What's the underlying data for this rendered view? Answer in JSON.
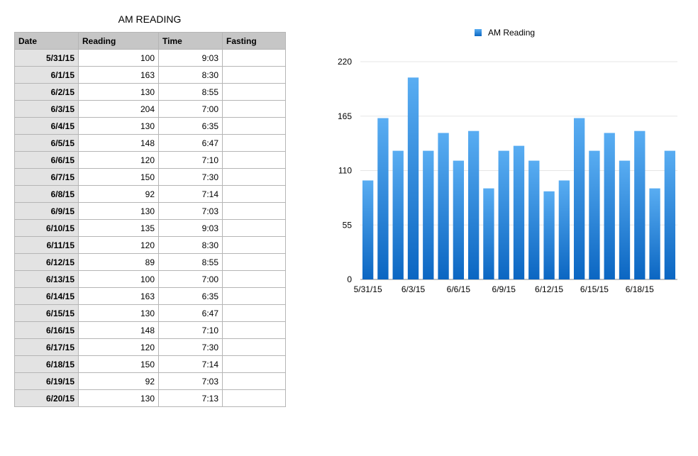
{
  "table": {
    "title": "AM READING",
    "headers": [
      "Date",
      "Reading",
      "Time",
      "Fasting"
    ],
    "rows": [
      {
        "date": "5/31/15",
        "reading": "100",
        "time": "9:03",
        "fasting": ""
      },
      {
        "date": "6/1/15",
        "reading": "163",
        "time": "8:30",
        "fasting": ""
      },
      {
        "date": "6/2/15",
        "reading": "130",
        "time": "8:55",
        "fasting": ""
      },
      {
        "date": "6/3/15",
        "reading": "204",
        "time": "7:00",
        "fasting": ""
      },
      {
        "date": "6/4/15",
        "reading": "130",
        "time": "6:35",
        "fasting": ""
      },
      {
        "date": "6/5/15",
        "reading": "148",
        "time": "6:47",
        "fasting": ""
      },
      {
        "date": "6/6/15",
        "reading": "120",
        "time": "7:10",
        "fasting": ""
      },
      {
        "date": "6/7/15",
        "reading": "150",
        "time": "7:30",
        "fasting": ""
      },
      {
        "date": "6/8/15",
        "reading": "92",
        "time": "7:14",
        "fasting": ""
      },
      {
        "date": "6/9/15",
        "reading": "130",
        "time": "7:03",
        "fasting": ""
      },
      {
        "date": "6/10/15",
        "reading": "135",
        "time": "9:03",
        "fasting": ""
      },
      {
        "date": "6/11/15",
        "reading": "120",
        "time": "8:30",
        "fasting": ""
      },
      {
        "date": "6/12/15",
        "reading": "89",
        "time": "8:55",
        "fasting": ""
      },
      {
        "date": "6/13/15",
        "reading": "100",
        "time": "7:00",
        "fasting": ""
      },
      {
        "date": "6/14/15",
        "reading": "163",
        "time": "6:35",
        "fasting": ""
      },
      {
        "date": "6/15/15",
        "reading": "130",
        "time": "6:47",
        "fasting": ""
      },
      {
        "date": "6/16/15",
        "reading": "148",
        "time": "7:10",
        "fasting": ""
      },
      {
        "date": "6/17/15",
        "reading": "120",
        "time": "7:30",
        "fasting": ""
      },
      {
        "date": "6/18/15",
        "reading": "150",
        "time": "7:14",
        "fasting": ""
      },
      {
        "date": "6/19/15",
        "reading": "92",
        "time": "7:03",
        "fasting": ""
      },
      {
        "date": "6/20/15",
        "reading": "130",
        "time": "7:13",
        "fasting": ""
      }
    ]
  },
  "chart_data": {
    "type": "bar",
    "title": "",
    "xlabel": "",
    "ylabel": "",
    "legend": "top",
    "grid": true,
    "ylim": [
      0,
      220
    ],
    "yticks": [
      0,
      55,
      110,
      165,
      220
    ],
    "categories": [
      "5/31/15",
      "6/1/15",
      "6/2/15",
      "6/3/15",
      "6/4/15",
      "6/5/15",
      "6/6/15",
      "6/7/15",
      "6/8/15",
      "6/9/15",
      "6/10/15",
      "6/11/15",
      "6/12/15",
      "6/13/15",
      "6/14/15",
      "6/15/15",
      "6/16/15",
      "6/17/15",
      "6/18/15",
      "6/19/15",
      "6/20/15"
    ],
    "xtick_labels": [
      "5/31/15",
      "6/3/15",
      "6/6/15",
      "6/9/15",
      "6/12/15",
      "6/15/15",
      "6/18/15"
    ],
    "series": [
      {
        "name": "AM Reading",
        "color_top": "#59adf2",
        "color_bottom": "#0b66c2",
        "values": [
          100,
          163,
          130,
          204,
          130,
          148,
          120,
          150,
          92,
          130,
          135,
          120,
          89,
          100,
          163,
          130,
          148,
          120,
          150,
          92,
          130
        ]
      }
    ]
  }
}
